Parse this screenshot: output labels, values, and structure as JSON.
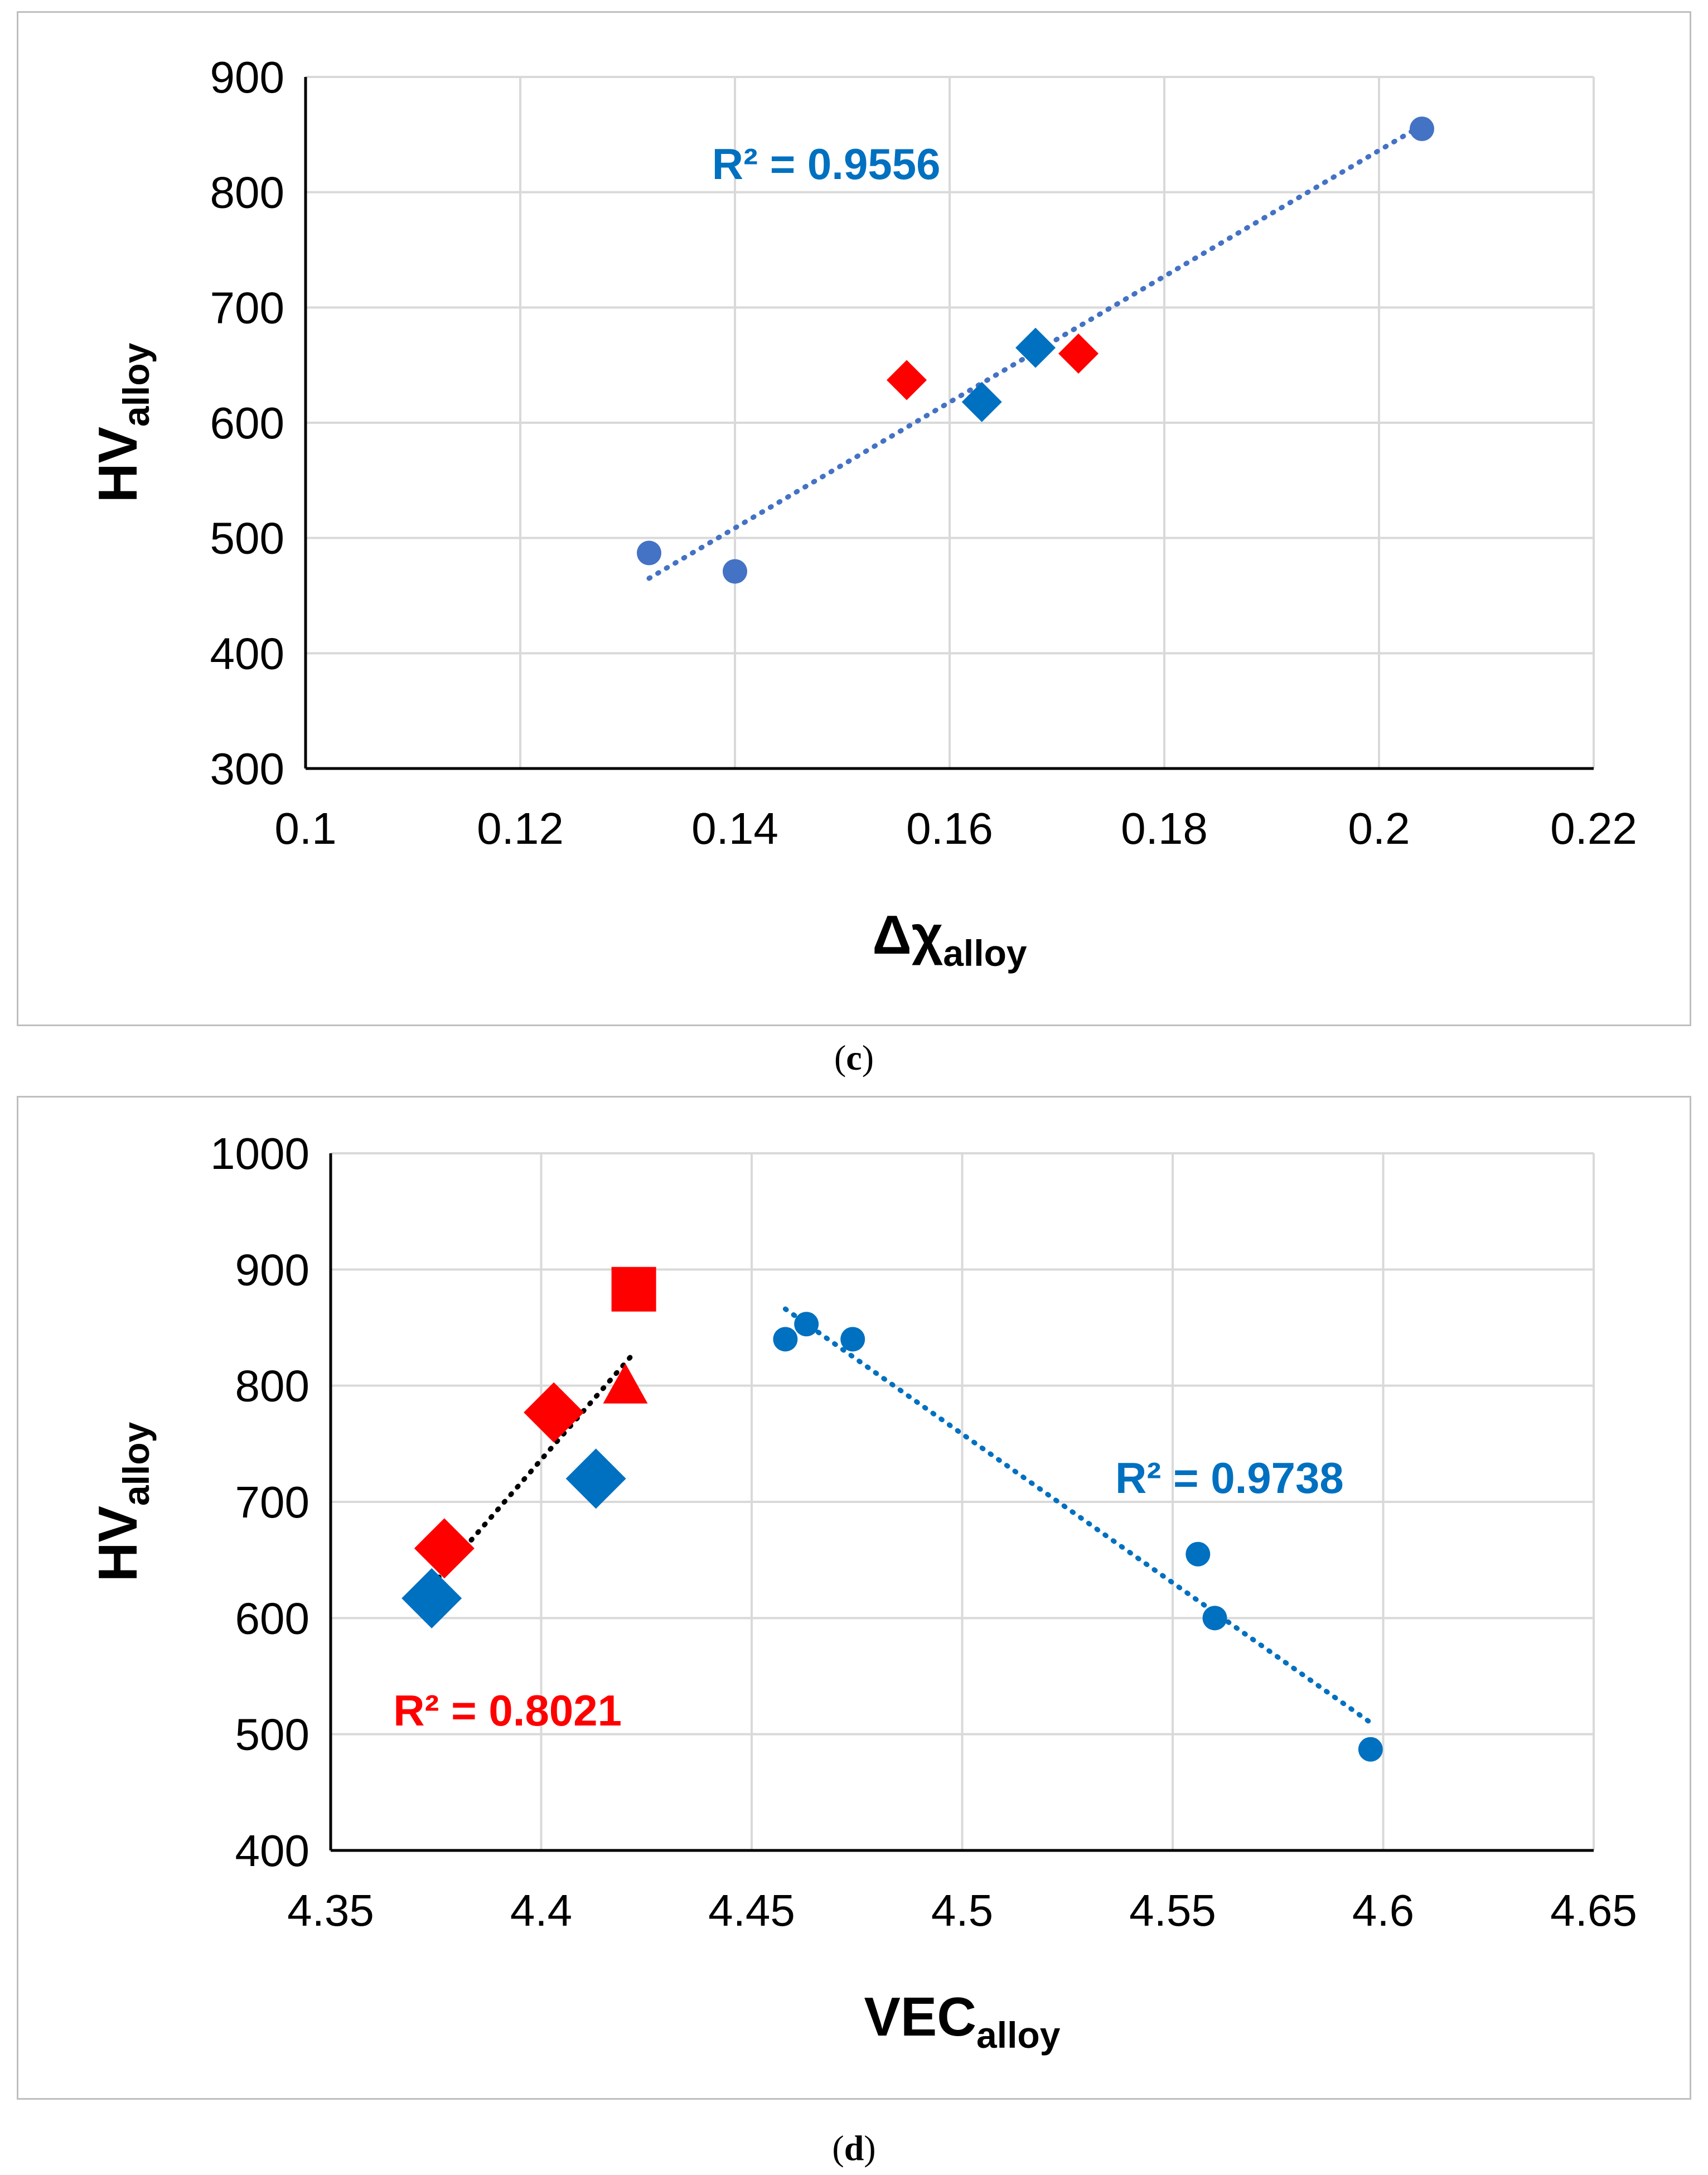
{
  "chart_data": [
    {
      "id": "c",
      "type": "scatter",
      "caption_letter": "c",
      "xlabel": {
        "main": "Δχ",
        "sub": "alloy"
      },
      "ylabel": {
        "main": "HV",
        "sub": "alloy"
      },
      "xlim": [
        0.1,
        0.22
      ],
      "ylim": [
        300,
        900
      ],
      "xticks": [
        0.1,
        0.12,
        0.14,
        0.16,
        0.18,
        0.2,
        0.22
      ],
      "xtick_labels": [
        "0.1",
        "0.12",
        "0.14",
        "0.16",
        "0.18",
        "0.2",
        "0.22"
      ],
      "yticks": [
        300,
        400,
        500,
        600,
        700,
        800,
        900
      ],
      "ytick_labels": [
        "300",
        "400",
        "500",
        "600",
        "700",
        "800",
        "900"
      ],
      "series": [
        {
          "name": "blue circles",
          "marker": "circle",
          "color": "#4472C4",
          "x": [
            0.132,
            0.14,
            0.204
          ],
          "y": [
            487,
            471,
            855
          ]
        },
        {
          "name": "red diamonds",
          "marker": "diamond",
          "color": "#FF0000",
          "x": [
            0.156,
            0.172
          ],
          "y": [
            637,
            660
          ]
        },
        {
          "name": "blue diamonds",
          "marker": "diamond",
          "color": "#0070C0",
          "x": [
            0.163,
            0.168
          ],
          "y": [
            618,
            665
          ]
        }
      ],
      "trendlines": [
        {
          "color": "#4472C4",
          "x": [
            0.132,
            0.204
          ],
          "y": [
            465,
            858
          ]
        }
      ],
      "annotations": [
        {
          "text": "R² = 0.9556",
          "color": "#0070C0",
          "x": 0.1485,
          "y": 826
        }
      ]
    },
    {
      "id": "d",
      "type": "scatter",
      "caption_letter": "d",
      "xlabel": {
        "main": "VEC",
        "sub": "alloy"
      },
      "ylabel": {
        "main": "HV",
        "sub": "alloy"
      },
      "xlim": [
        4.35,
        4.65
      ],
      "ylim": [
        400,
        1000
      ],
      "xticks": [
        4.35,
        4.4,
        4.45,
        4.5,
        4.55,
        4.6,
        4.65
      ],
      "xtick_labels": [
        "4.35",
        "4.4",
        "4.45",
        "4.5",
        "4.55",
        "4.6",
        "4.65"
      ],
      "yticks": [
        400,
        500,
        600,
        700,
        800,
        900,
        1000
      ],
      "ytick_labels": [
        "400",
        "500",
        "600",
        "700",
        "800",
        "900",
        "1000"
      ],
      "series": [
        {
          "name": "blue circles",
          "marker": "circle",
          "color": "#0070C0",
          "x": [
            4.458,
            4.463,
            4.474,
            4.556,
            4.56,
            4.597
          ],
          "y": [
            840,
            853,
            840,
            655,
            600,
            487
          ]
        },
        {
          "name": "red diamonds",
          "marker": "diamond",
          "color": "#FF0000",
          "x": [
            4.377,
            4.403
          ],
          "y": [
            660,
            777
          ]
        },
        {
          "name": "blue diamonds",
          "marker": "diamond",
          "color": "#0070C0",
          "x": [
            4.374,
            4.413
          ],
          "y": [
            617,
            720
          ]
        },
        {
          "name": "red triangle",
          "marker": "triangle",
          "color": "#FF0000",
          "x": [
            4.42
          ],
          "y": [
            800
          ]
        },
        {
          "name": "red square",
          "marker": "square",
          "color": "#FF0000",
          "x": [
            4.422
          ],
          "y": [
            883
          ]
        }
      ],
      "trendlines": [
        {
          "color": "#0070C0",
          "x": [
            4.458,
            4.597
          ],
          "y": [
            866,
            510
          ]
        },
        {
          "color": "#000000",
          "x": [
            4.374,
            4.422
          ],
          "y": [
            628,
            828
          ]
        }
      ],
      "annotations": [
        {
          "text": "R² = 0.9738",
          "color": "#0070C0",
          "x": 4.5635,
          "y": 722
        },
        {
          "text": "R² = 0.8021",
          "color": "#FF0000",
          "x": 4.392,
          "y": 522
        }
      ]
    }
  ]
}
